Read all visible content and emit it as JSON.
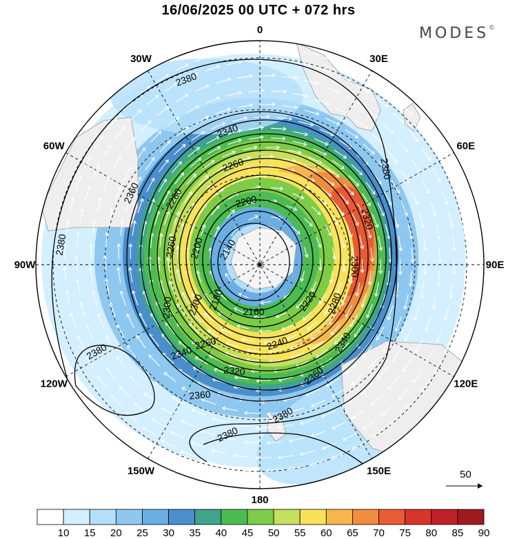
{
  "title": "16/06/2025  00 UTC  + 072 hrs",
  "brand": "MODES",
  "brand_mark": "©",
  "meridian_labels": [
    {
      "text": "0",
      "lon": 0
    },
    {
      "text": "30E",
      "lon": 30
    },
    {
      "text": "60E",
      "lon": 60
    },
    {
      "text": "90E",
      "lon": 90
    },
    {
      "text": "120E",
      "lon": 120
    },
    {
      "text": "150E",
      "lon": 150
    },
    {
      "text": "180",
      "lon": 180
    },
    {
      "text": "150W",
      "lon": -150
    },
    {
      "text": "120W",
      "lon": -120
    },
    {
      "text": "90W",
      "lon": -90
    },
    {
      "text": "60W",
      "lon": -60
    },
    {
      "text": "30W",
      "lon": -30
    }
  ],
  "contour_labels": [
    "2380",
    "2380",
    "2380",
    "2380",
    "2380",
    "2380",
    "2360",
    "2360",
    "2360",
    "2340",
    "2340",
    "2340",
    "2320",
    "2320",
    "2300",
    "2300",
    "2300",
    "2280",
    "2280",
    "2260",
    "2260",
    "2260",
    "2240",
    "2220",
    "2200",
    "2200",
    "2180",
    "2160",
    "2140"
  ],
  "wind_scale": {
    "label": "50"
  },
  "colorbar": {
    "ticks": [
      "10",
      "15",
      "20",
      "25",
      "30",
      "35",
      "40",
      "45",
      "50",
      "55",
      "60",
      "65",
      "70",
      "75",
      "80",
      "85",
      "90"
    ],
    "colors": [
      "#ffffff",
      "#d4efff",
      "#b5e0fb",
      "#8ec8f0",
      "#6baee4",
      "#4a8fcb",
      "#3fa58a",
      "#4cbb52",
      "#7ccc48",
      "#c6df5c",
      "#f8e25a",
      "#f6b64c",
      "#f18d3e",
      "#e95b34",
      "#d8342c",
      "#c02028",
      "#9e1a1e"
    ]
  },
  "colors": {
    "land": "#eeeeee",
    "coast": "#9a9a9a",
    "contour": "#000000",
    "arrow": "#ffffff"
  }
}
